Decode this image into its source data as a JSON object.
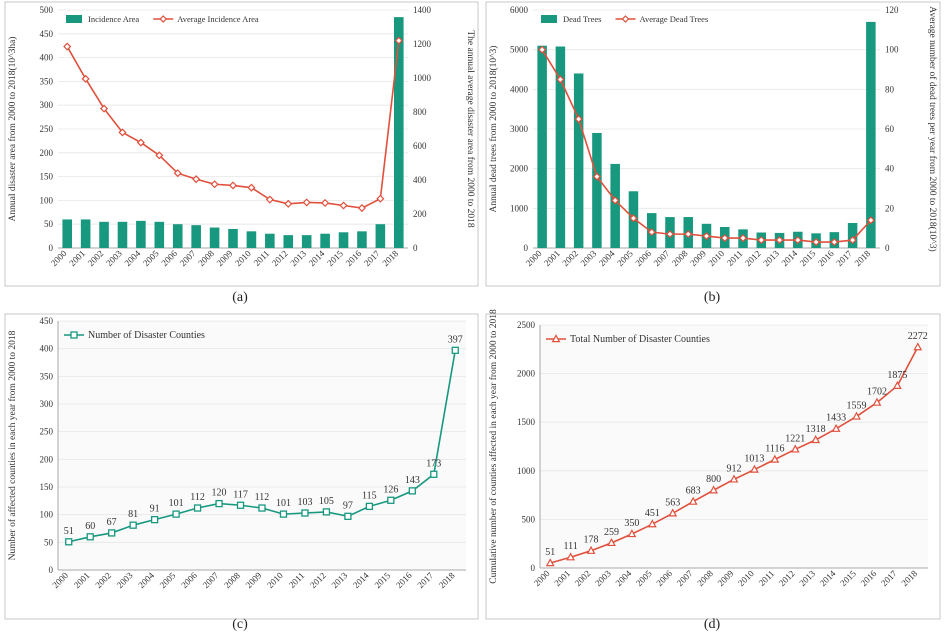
{
  "colors": {
    "teal": "#17987f",
    "red": "#e0503c",
    "axis": "#a8a8a8",
    "grid": "#e6e6e6",
    "text": "#333333",
    "frame": "#bdbdbd"
  },
  "chart_data": [
    {
      "id": "a",
      "type": "bar",
      "panel_label": "(a)",
      "categories": [
        "2000",
        "2001",
        "2002",
        "2003",
        "2004",
        "2005",
        "2006",
        "2007",
        "2008",
        "2009",
        "2010",
        "2011",
        "2012",
        "2013",
        "2014",
        "2015",
        "2016",
        "2017",
        "2018"
      ],
      "series": [
        {
          "name": "Incidence Area",
          "kind": "bar",
          "axis": "left",
          "values": [
            60,
            60,
            55,
            55,
            57,
            55,
            50,
            48,
            43,
            40,
            35,
            30,
            27,
            27,
            30,
            33,
            35,
            50,
            485
          ]
        },
        {
          "name": "Average Incidence Area",
          "kind": "line",
          "axis": "right",
          "marker": "diamond",
          "values": [
            1185,
            995,
            820,
            680,
            620,
            545,
            440,
            405,
            375,
            368,
            355,
            285,
            260,
            268,
            265,
            250,
            235,
            290,
            1220
          ]
        }
      ],
      "ylabel": "Annual disaster area from 2000 to 2018(10^3ha)",
      "y2label": "The annual average disaster area from 2000 to 2018",
      "ylim": [
        0,
        500
      ],
      "yticks": [
        0,
        50,
        100,
        150,
        200,
        250,
        300,
        350,
        400,
        450,
        500
      ],
      "y2lim": [
        0,
        1400
      ],
      "y2ticks": [
        0,
        200,
        400,
        600,
        800,
        1000,
        1200,
        1400
      ],
      "legend": "top-left",
      "grid": true
    },
    {
      "id": "b",
      "type": "bar",
      "panel_label": "(b)",
      "categories": [
        "2000",
        "2001",
        "2002",
        "2003",
        "2004",
        "2005",
        "2006",
        "2007",
        "2008",
        "2009",
        "2010",
        "2011",
        "2012",
        "2013",
        "2014",
        "2015",
        "2016",
        "2017",
        "2018"
      ],
      "series": [
        {
          "name": "Dead Trees",
          "kind": "bar",
          "axis": "left",
          "values": [
            5100,
            5080,
            4400,
            2900,
            2120,
            1430,
            880,
            780,
            780,
            610,
            530,
            470,
            390,
            380,
            410,
            370,
            400,
            630,
            5700
          ]
        },
        {
          "name": "Average Dead Trees",
          "kind": "line",
          "axis": "right",
          "marker": "diamond",
          "values": [
            100,
            85,
            65,
            36,
            24,
            15,
            8,
            7,
            7,
            6,
            5,
            5,
            4,
            4,
            4,
            3,
            3,
            4,
            14
          ]
        }
      ],
      "ylabel": "Annual dead trees from 2000 to 2018(10^3)",
      "y2label": "Average number of dead trees per year from 2000 to 2018(10^3)",
      "ylim": [
        0,
        6000
      ],
      "yticks": [
        0,
        1000,
        2000,
        3000,
        4000,
        5000,
        6000
      ],
      "y2lim": [
        0,
        120
      ],
      "y2ticks": [
        0,
        20,
        40,
        60,
        80,
        100,
        120
      ],
      "legend": "top-left",
      "grid": true
    },
    {
      "id": "c",
      "type": "line",
      "panel_label": "(c)",
      "categories": [
        "2000",
        "2001",
        "2002",
        "2003",
        "2004",
        "2005",
        "2006",
        "2007",
        "2008",
        "2009",
        "2010",
        "2011",
        "2012",
        "2013",
        "2014",
        "2015",
        "2016",
        "2017",
        "2018"
      ],
      "series": [
        {
          "name": "Number of Disaster Counties",
          "kind": "line",
          "axis": "left",
          "marker": "square",
          "values": [
            51,
            60,
            67,
            81,
            91,
            101,
            112,
            120,
            117,
            112,
            101,
            103,
            105,
            97,
            115,
            126,
            143,
            173,
            397
          ],
          "labels": [
            "51",
            "60",
            "67",
            "81",
            "91",
            "101",
            "112",
            "120",
            "117",
            "112",
            "101",
            "103",
            "105",
            "97",
            "115",
            "126",
            "143",
            "173",
            "397"
          ]
        }
      ],
      "ylabel": "Number of affected counties in each year from 2000 to 2018",
      "ylim": [
        0,
        450
      ],
      "yticks": [
        0,
        50,
        100,
        150,
        200,
        250,
        300,
        350,
        400,
        450
      ],
      "legend": "top-left",
      "grid": true
    },
    {
      "id": "d",
      "type": "line",
      "panel_label": "(d)",
      "categories": [
        "2000",
        "2001",
        "2002",
        "2003",
        "2004",
        "2005",
        "2006",
        "2007",
        "2008",
        "2009",
        "2010",
        "2011",
        "2012",
        "2013",
        "2014",
        "2015",
        "2016",
        "2017",
        "2018"
      ],
      "series": [
        {
          "name": "Total Number of Disaster Counties",
          "kind": "line",
          "axis": "left",
          "marker": "triangle",
          "values": [
            51,
            111,
            178,
            259,
            350,
            451,
            563,
            683,
            800,
            912,
            1013,
            1116,
            1221,
            1318,
            1433,
            1559,
            1702,
            1875,
            2272
          ],
          "labels": [
            "51",
            "111",
            "178",
            "259",
            "350",
            "451",
            "563",
            "683",
            "800",
            "912",
            "1013",
            "1116",
            "1221",
            "1318",
            "1433",
            "1559",
            "1702",
            "1875",
            "2272"
          ]
        }
      ],
      "ylabel": "Cumulative number of counties affected in each year from 2000 to 2018",
      "ylim": [
        0,
        2500
      ],
      "yticks": [
        0,
        500,
        1000,
        1500,
        2000,
        2500
      ],
      "legend": "top-left",
      "grid": true
    }
  ]
}
